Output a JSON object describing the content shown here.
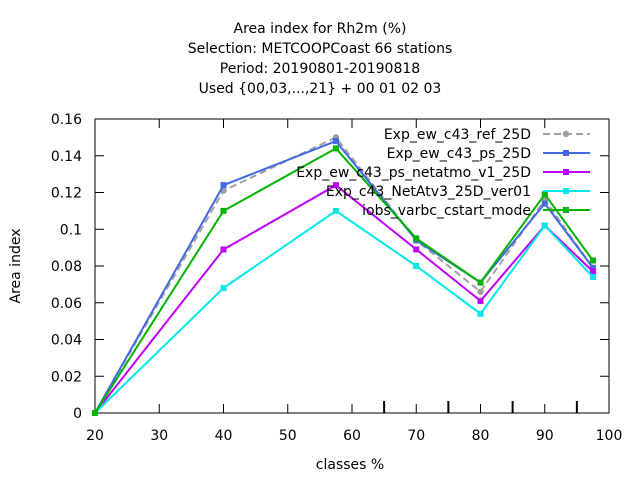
{
  "chart_data": {
    "type": "line",
    "title_lines": [
      "Area index  for Rh2m (%)",
      "Selection: METCOOPCoast     66 stations",
      "Period: 20190801-20190818",
      "Used {00,03,...,21} + 00 01 02 03"
    ],
    "xlabel": "classes %",
    "ylabel": "Area index",
    "xlim": [
      20,
      100
    ],
    "ylim": [
      0,
      0.16
    ],
    "xticks": [
      "20",
      "30",
      "40",
      "50",
      "60",
      "70",
      "80",
      "90",
      "100"
    ],
    "yticks": [
      "0",
      "0.02",
      "0.04",
      "0.06",
      "0.08",
      "0.1",
      "0.12",
      "0.14",
      "0.16"
    ],
    "minor_xticks": [
      65,
      75,
      85,
      95
    ],
    "grid": false,
    "legend_position": "top-right",
    "x": [
      20,
      40,
      57.5,
      70,
      80,
      90,
      97.5
    ],
    "series": [
      {
        "name": "Exp_ew_c43_ref_25D",
        "color": "#a0a0a0",
        "dashed": true,
        "marker": "circle",
        "values": [
          0,
          0.121,
          0.15,
          0.094,
          0.066,
          0.116,
          0.079
        ]
      },
      {
        "name": "Exp_ew_c43_ps_25D",
        "color": "#4169e1",
        "dashed": false,
        "marker": "square",
        "values": [
          0,
          0.124,
          0.148,
          0.094,
          0.071,
          0.114,
          0.079
        ]
      },
      {
        "name": "Exp_ew_c43_ps_netatmo_v1_25D",
        "color": "#c000ff",
        "dashed": false,
        "marker": "square",
        "values": [
          0,
          0.089,
          0.124,
          0.089,
          0.061,
          0.102,
          0.077
        ]
      },
      {
        "name": "Exp_c43_NetAtv3_25D_ver01",
        "color": "#00e8e8",
        "dashed": false,
        "marker": "square",
        "values": [
          0,
          0.068,
          0.11,
          0.08,
          0.054,
          0.102,
          0.074
        ]
      },
      {
        "name": "iobs_varbc_cstart_mode",
        "color": "#00b400",
        "dashed": false,
        "marker": "square",
        "values": [
          0,
          0.11,
          0.144,
          0.095,
          0.071,
          0.119,
          0.083
        ]
      }
    ]
  }
}
